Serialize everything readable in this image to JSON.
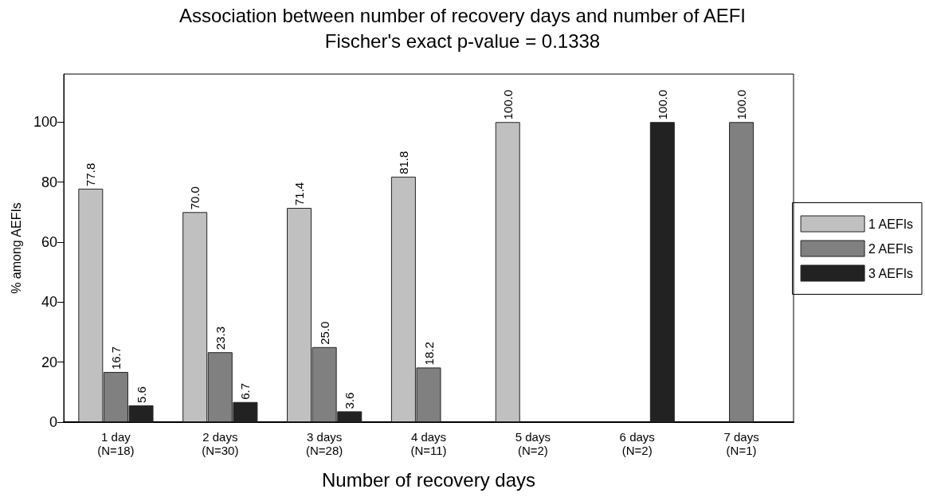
{
  "chart_data": {
    "type": "bar",
    "title": "Association between number of recovery days and number of AEFI",
    "subtitle": "Fischer's exact p-value = 0.1338",
    "xlabel": "Number of recovery days",
    "ylabel": "% among AEFIs",
    "categories": [
      "1 day\n(N=18)",
      "2 days\n(N=30)",
      "3 days\n(N=28)",
      "4 days\n(N=11)",
      "5 days\n(N=2)",
      "6 days\n(N=2)",
      "7 days\n(N=1)"
    ],
    "series": [
      {
        "name": "1 AEFIs",
        "color": "#c0c0c0",
        "values": [
          77.8,
          70.0,
          71.4,
          81.8,
          100.0,
          null,
          null
        ],
        "value_labels": [
          "77.8",
          "70.0",
          "71.4",
          "81.8",
          "100.0",
          null,
          null
        ]
      },
      {
        "name": "2 AEFIs",
        "color": "#808080",
        "values": [
          16.7,
          23.3,
          25.0,
          18.2,
          null,
          null,
          100.0
        ],
        "value_labels": [
          "16.7",
          "23.3",
          "25.0",
          "18.2",
          null,
          null,
          "100.0"
        ]
      },
      {
        "name": "3 AEFIs",
        "color": "#222222",
        "values": [
          5.6,
          6.7,
          3.6,
          null,
          null,
          100.0,
          null
        ],
        "value_labels": [
          "5.6",
          "6.7",
          "3.6",
          null,
          null,
          "100.0",
          null
        ]
      }
    ],
    "ylim": [
      0,
      116
    ],
    "yticks": [
      0,
      20,
      40,
      60,
      80,
      100
    ],
    "grid": false,
    "legend": "right"
  }
}
